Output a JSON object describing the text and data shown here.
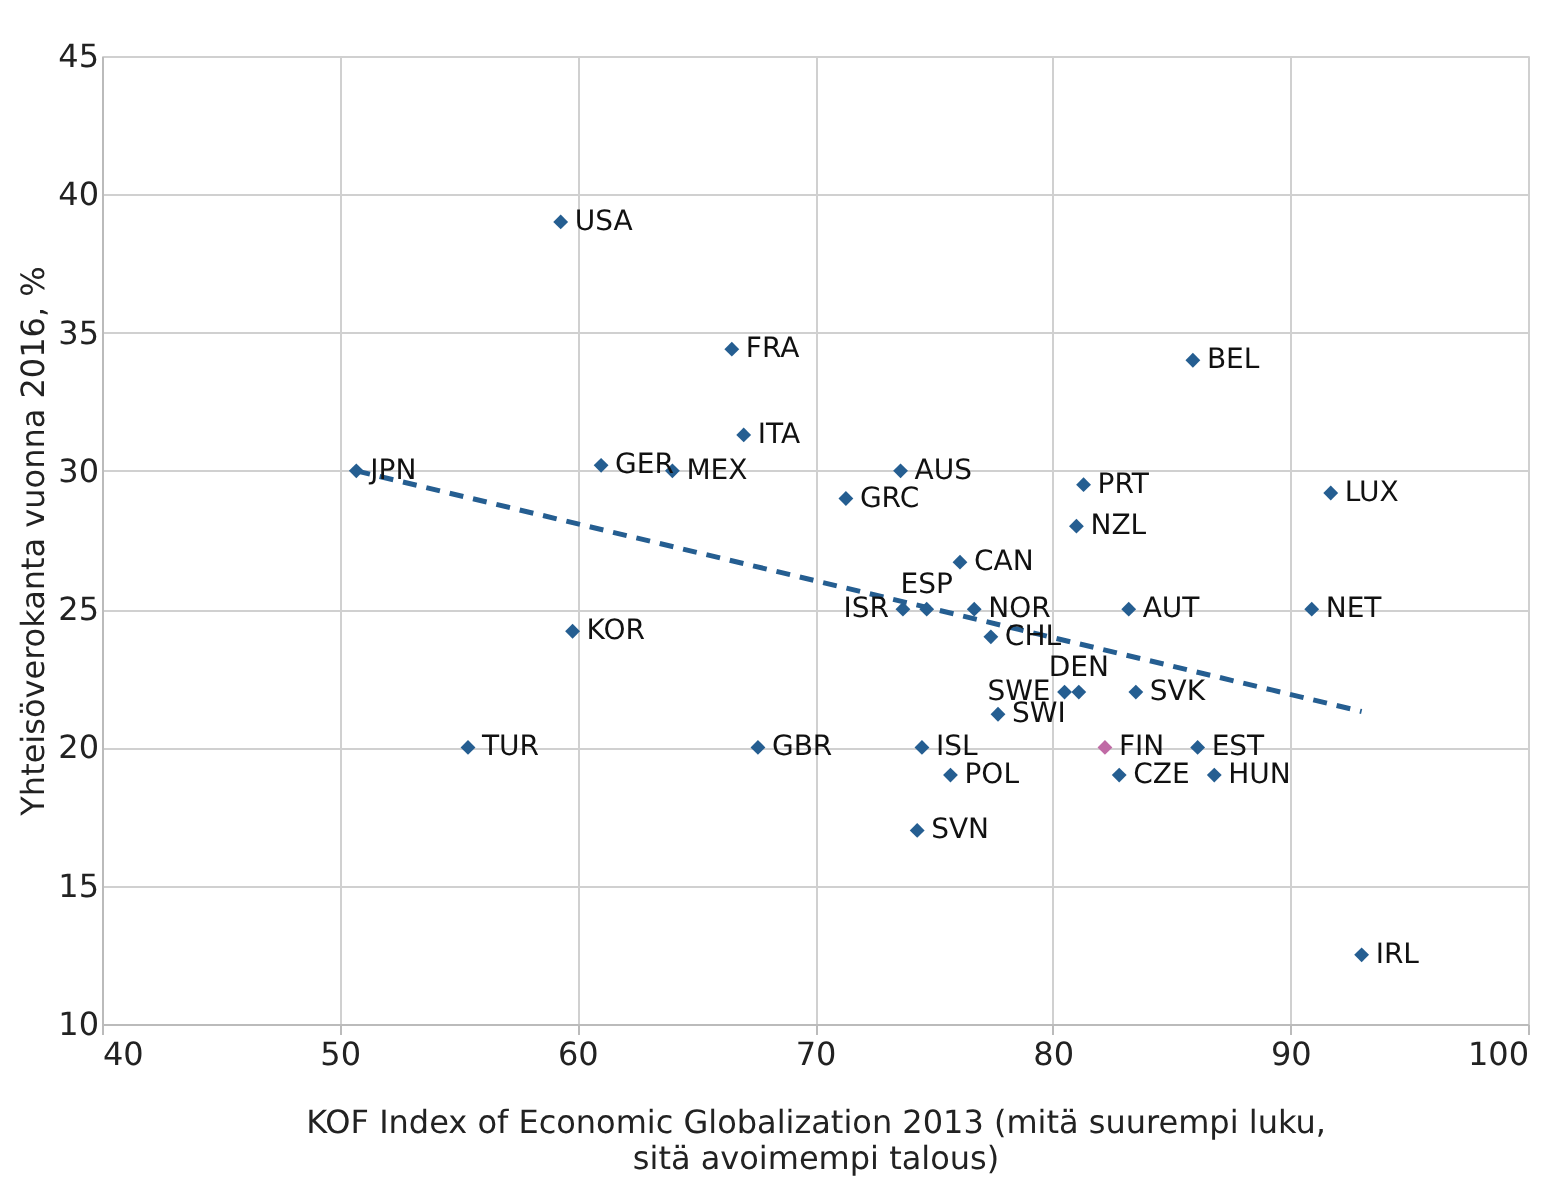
{
  "chart_data": {
    "type": "scatter",
    "xlabel": "KOF Index of Economic Globalization 2013 (mitä suurempi luku, sitä avoimempi talous)",
    "ylabel": "Yhteisöverokanta vuonna 2016, %",
    "xlim": [
      40,
      100
    ],
    "xticks": [
      40,
      50,
      60,
      70,
      80,
      90,
      100
    ],
    "ylim": [
      10,
      45
    ],
    "yticks": [
      10,
      15,
      20,
      25,
      30,
      35,
      40,
      45
    ],
    "grid": true,
    "marker": "diamond",
    "series": [
      {
        "colors": [
          "#255e91",
          "#255e91",
          "#255e91",
          "#255e91",
          "#255e91",
          "#255e91",
          "#255e91",
          "#255e91",
          "#255e91",
          "#255e91",
          "#255e91",
          "#255e91",
          "#255e91",
          "#255e91",
          "#255e91",
          "#255e91",
          "#255e91",
          "#255e91",
          "#255e91",
          "#255e91",
          "#255e91",
          "#255e91",
          "#255e91",
          "#255e91",
          "#255e91",
          "#c06aa5",
          "#255e91",
          "#255e91",
          "#255e91",
          "#255e91",
          "#255e91",
          "#255e91",
          "#255e91",
          "#255e91"
        ],
        "x": [
          59.3,
          66.5,
          67.0,
          50.7,
          61.0,
          64.0,
          73.6,
          71.3,
          73.7,
          74.7,
          59.8,
          85.9,
          81.3,
          81.0,
          91.7,
          76.1,
          76.7,
          83.2,
          90.9,
          77.4,
          80.5,
          81.1,
          83.5,
          77.7,
          74.5,
          82.2,
          86.1,
          75.7,
          82.8,
          86.8,
          55.4,
          67.6,
          74.3,
          93.0
        ],
        "values": [
          39.0,
          34.4,
          31.3,
          30.0,
          30.2,
          30.0,
          30.0,
          29.0,
          25.0,
          25.0,
          24.2,
          34.0,
          29.5,
          28.0,
          29.2,
          26.7,
          25.0,
          25.0,
          25.0,
          24.0,
          22.0,
          22.0,
          22.0,
          21.2,
          20.0,
          20.0,
          20.0,
          19.0,
          19.0,
          19.0,
          20.0,
          20.0,
          17.0,
          12.5
        ]
      },
      {
        "type": "line",
        "color": "#255e91",
        "line_style": "dashed",
        "marker": "none",
        "x": [
          50.7,
          93.0
        ],
        "values": [
          30.0,
          21.3
        ]
      }
    ],
    "annotations": [
      {
        "text": "USA",
        "x": 59.3,
        "y": 39.0
      },
      {
        "text": "FRA",
        "x": 66.5,
        "y": 34.4
      },
      {
        "text": "ITA",
        "x": 67.0,
        "y": 31.3
      },
      {
        "text": "JPN",
        "x": 50.7,
        "y": 30.0
      },
      {
        "text": "GER",
        "x": 61.0,
        "y": 30.2
      },
      {
        "text": "MEX",
        "x": 64.0,
        "y": 30.0
      },
      {
        "text": "AUS",
        "x": 73.6,
        "y": 30.0
      },
      {
        "text": "GRC",
        "x": 71.3,
        "y": 29.0
      },
      {
        "text": "ISR",
        "x": 73.7,
        "y": 25.0
      },
      {
        "text": "ESP",
        "x": 74.7,
        "y": 25.0
      },
      {
        "text": "KOR",
        "x": 59.8,
        "y": 24.2
      },
      {
        "text": "BEL",
        "x": 85.9,
        "y": 34.0
      },
      {
        "text": "PRT",
        "x": 81.3,
        "y": 29.5
      },
      {
        "text": "NZL",
        "x": 81.0,
        "y": 28.0
      },
      {
        "text": "LUX",
        "x": 91.7,
        "y": 29.2
      },
      {
        "text": "CAN",
        "x": 76.1,
        "y": 26.7
      },
      {
        "text": "NOR",
        "x": 76.7,
        "y": 25.0
      },
      {
        "text": "AUT",
        "x": 83.2,
        "y": 25.0
      },
      {
        "text": "NET",
        "x": 90.9,
        "y": 25.0
      },
      {
        "text": "CHL",
        "x": 77.4,
        "y": 24.0
      },
      {
        "text": "SWE",
        "x": 80.5,
        "y": 22.0
      },
      {
        "text": "DEN",
        "x": 81.1,
        "y": 22.0
      },
      {
        "text": "SVK",
        "x": 83.5,
        "y": 22.0
      },
      {
        "text": "SWI",
        "x": 77.7,
        "y": 21.2
      },
      {
        "text": "ISL",
        "x": 74.5,
        "y": 20.0
      },
      {
        "text": "FIN",
        "x": 82.2,
        "y": 20.0
      },
      {
        "text": "EST",
        "x": 86.1,
        "y": 20.0
      },
      {
        "text": "POL",
        "x": 75.7,
        "y": 19.0
      },
      {
        "text": "CZE",
        "x": 82.8,
        "y": 19.0
      },
      {
        "text": "HUN",
        "x": 86.8,
        "y": 19.0
      },
      {
        "text": "TUR",
        "x": 55.4,
        "y": 20.0
      },
      {
        "text": "GBR",
        "x": 67.6,
        "y": 20.0
      },
      {
        "text": "SVN",
        "x": 74.3,
        "y": 17.0
      },
      {
        "text": "IRL",
        "x": 93.0,
        "y": 12.5
      }
    ]
  }
}
